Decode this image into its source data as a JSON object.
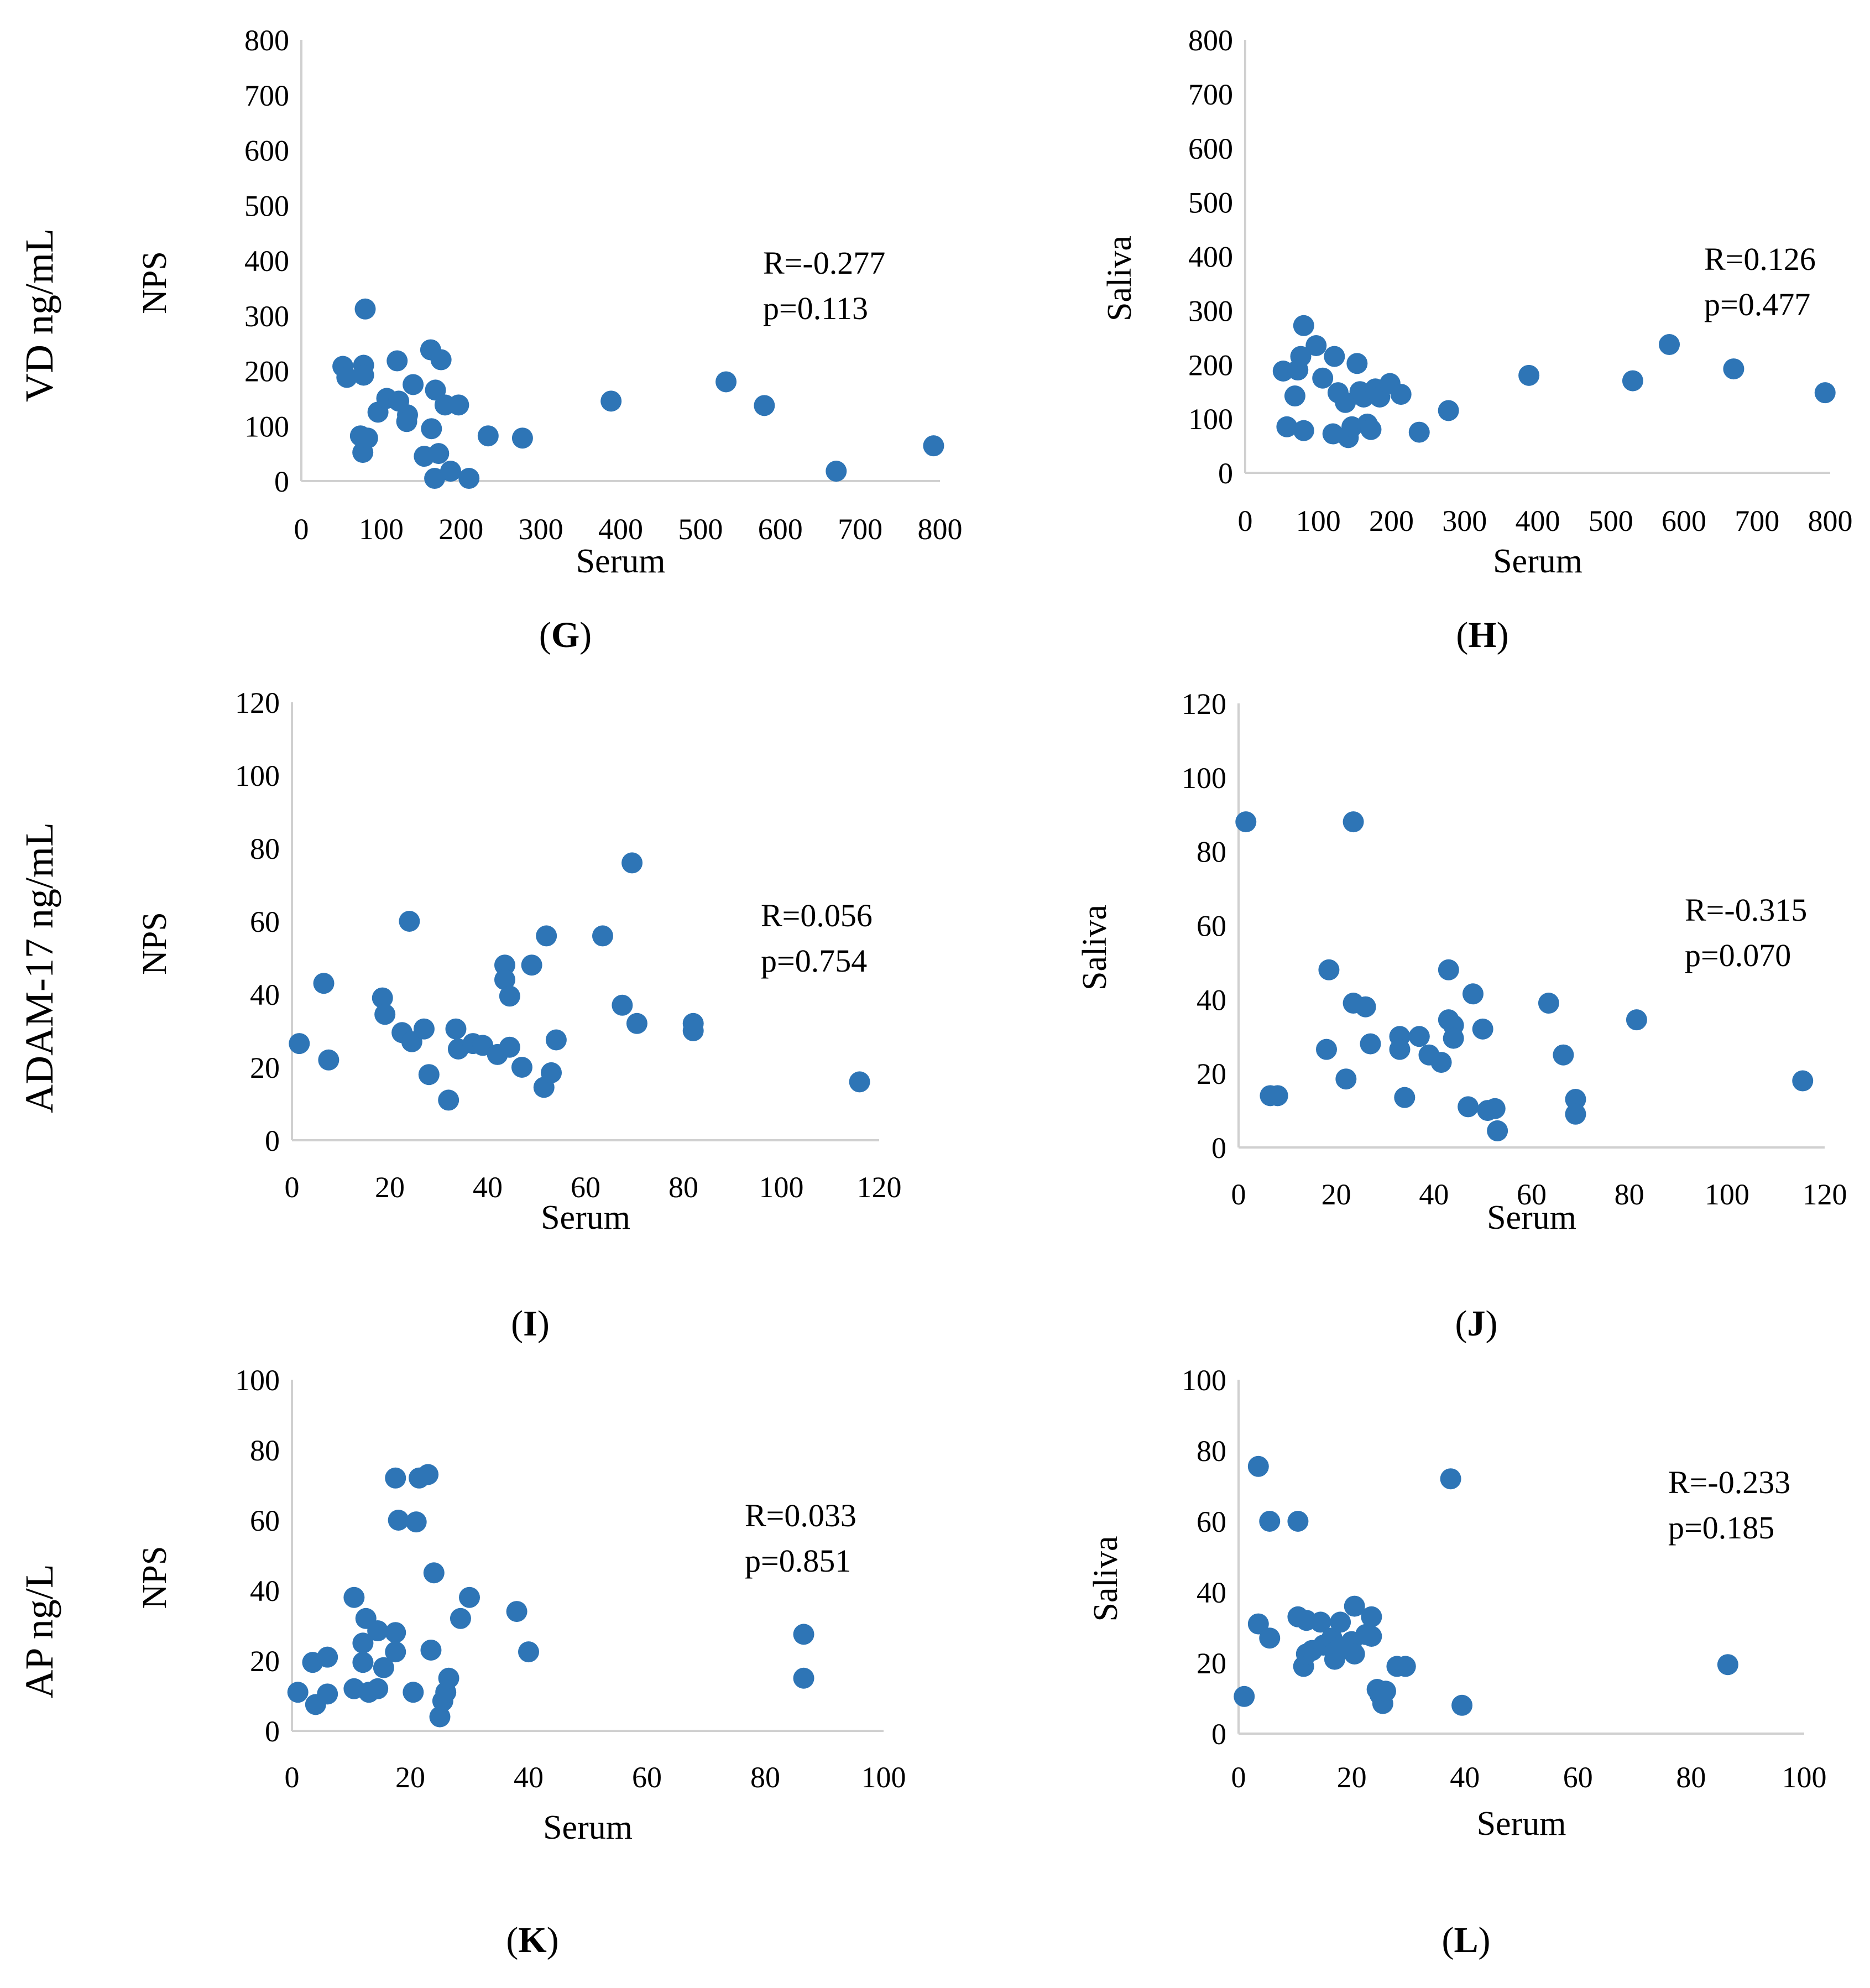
{
  "figure": {
    "row_labels": [
      "VD ng/mL",
      "ADAM-17 ng/mL",
      "AP ng/L"
    ],
    "colors": {
      "point": "#2E75B6",
      "axis": "#D0D0D0",
      "text": "#000000"
    }
  },
  "chart_data": [
    {
      "id": "G",
      "type": "scatter",
      "letter": "G",
      "xlabel": "Serum",
      "ylabel": "NPS",
      "xlim": [
        0,
        800
      ],
      "ylim": [
        0,
        800
      ],
      "xticks": [
        0,
        100,
        200,
        300,
        400,
        500,
        600,
        700,
        800
      ],
      "yticks": [
        0,
        100,
        200,
        300,
        400,
        500,
        600,
        700,
        800
      ],
      "annotation": [
        "R=-0.277",
        "p=0.113"
      ],
      "points": [
        [
          52,
          208
        ],
        [
          57,
          188
        ],
        [
          78,
          210
        ],
        [
          78,
          192
        ],
        [
          74,
          82
        ],
        [
          77,
          52
        ],
        [
          83,
          78
        ],
        [
          80,
          312
        ],
        [
          96,
          125
        ],
        [
          107,
          150
        ],
        [
          120,
          218
        ],
        [
          122,
          145
        ],
        [
          133,
          120
        ],
        [
          132,
          108
        ],
        [
          140,
          175
        ],
        [
          154,
          45
        ],
        [
          163,
          95
        ],
        [
          162,
          238
        ],
        [
          168,
          165
        ],
        [
          172,
          50
        ],
        [
          175,
          220
        ],
        [
          167,
          5
        ],
        [
          180,
          138
        ],
        [
          187,
          18
        ],
        [
          197,
          138
        ],
        [
          210,
          5
        ],
        [
          234,
          82
        ],
        [
          277,
          78
        ],
        [
          388,
          145
        ],
        [
          532,
          180
        ],
        [
          580,
          137
        ],
        [
          670,
          18
        ],
        [
          792,
          64
        ]
      ]
    },
    {
      "id": "H",
      "type": "scatter",
      "letter": "H",
      "xlabel": "Serum",
      "ylabel": "Saliva",
      "xlim": [
        0,
        800
      ],
      "ylim": [
        0,
        800
      ],
      "xticks": [
        0,
        100,
        200,
        300,
        400,
        500,
        600,
        700,
        800
      ],
      "yticks": [
        0,
        100,
        200,
        300,
        400,
        500,
        600,
        700,
        800
      ],
      "annotation": [
        "R=0.126",
        "p=0.477"
      ],
      "points": [
        [
          52,
          188
        ],
        [
          57,
          85
        ],
        [
          68,
          142
        ],
        [
          72,
          190
        ],
        [
          76,
          215
        ],
        [
          80,
          78
        ],
        [
          80,
          272
        ],
        [
          97,
          235
        ],
        [
          106,
          175
        ],
        [
          120,
          72
        ],
        [
          122,
          215
        ],
        [
          127,
          148
        ],
        [
          137,
          130
        ],
        [
          141,
          65
        ],
        [
          146,
          85
        ],
        [
          153,
          202
        ],
        [
          157,
          150
        ],
        [
          162,
          140
        ],
        [
          167,
          90
        ],
        [
          172,
          80
        ],
        [
          178,
          155
        ],
        [
          184,
          140
        ],
        [
          198,
          165
        ],
        [
          213,
          145
        ],
        [
          238,
          75
        ],
        [
          278,
          115
        ],
        [
          388,
          180
        ],
        [
          530,
          170
        ],
        [
          580,
          237
        ],
        [
          668,
          192
        ],
        [
          793,
          148
        ]
      ]
    },
    {
      "id": "I",
      "type": "scatter",
      "letter": "I",
      "xlabel": "Serum",
      "ylabel": "NPS",
      "xlim": [
        0,
        120
      ],
      "ylim": [
        0,
        120
      ],
      "xticks": [
        0,
        20,
        40,
        60,
        80,
        100,
        120
      ],
      "yticks": [
        0,
        20,
        40,
        60,
        80,
        100,
        120
      ],
      "annotation": [
        "R=0.056",
        "p=0.754"
      ],
      "points": [
        [
          1.5,
          26.5
        ],
        [
          6.5,
          43
        ],
        [
          7.5,
          22
        ],
        [
          18.5,
          39
        ],
        [
          19,
          34.5
        ],
        [
          22.5,
          29.5
        ],
        [
          24,
          60
        ],
        [
          24.5,
          27
        ],
        [
          27,
          30.5
        ],
        [
          28,
          18
        ],
        [
          32,
          11
        ],
        [
          33.5,
          30.5
        ],
        [
          34,
          25
        ],
        [
          37,
          26.5
        ],
        [
          39,
          26
        ],
        [
          42,
          23.5
        ],
        [
          43.5,
          48
        ],
        [
          43.5,
          44
        ],
        [
          44.5,
          39.5
        ],
        [
          44.5,
          25.5
        ],
        [
          47,
          20
        ],
        [
          49,
          48
        ],
        [
          51.5,
          14.5
        ],
        [
          52,
          56
        ],
        [
          53,
          18.5
        ],
        [
          54,
          27.5
        ],
        [
          63.5,
          56
        ],
        [
          67.5,
          37
        ],
        [
          69.5,
          76
        ],
        [
          70.5,
          32
        ],
        [
          82,
          32
        ],
        [
          82,
          30
        ],
        [
          116,
          16
        ]
      ]
    },
    {
      "id": "J",
      "type": "scatter",
      "letter": "J",
      "xlabel": "Serum",
      "ylabel": "Saliva",
      "xlim": [
        0,
        120
      ],
      "ylim": [
        0,
        120
      ],
      "xticks": [
        0,
        20,
        40,
        60,
        80,
        100,
        120
      ],
      "yticks": [
        0,
        20,
        40,
        60,
        80,
        100,
        120
      ],
      "annotation": [
        "R=-0.315",
        "p=0.070"
      ],
      "points": [
        [
          1.5,
          88
        ],
        [
          6.5,
          14
        ],
        [
          8,
          14
        ],
        [
          18,
          26.5
        ],
        [
          18.5,
          48
        ],
        [
          22,
          18.5
        ],
        [
          23.5,
          39
        ],
        [
          23.5,
          88
        ],
        [
          26,
          38
        ],
        [
          27,
          28
        ],
        [
          33,
          30
        ],
        [
          33,
          26.5
        ],
        [
          34,
          13.5
        ],
        [
          37,
          30
        ],
        [
          39,
          25
        ],
        [
          41.5,
          23
        ],
        [
          43,
          48
        ],
        [
          43,
          34.5
        ],
        [
          44,
          33
        ],
        [
          44,
          29.5
        ],
        [
          47,
          11
        ],
        [
          48,
          41.5
        ],
        [
          50,
          32
        ],
        [
          51,
          10
        ],
        [
          52.5,
          10.5
        ],
        [
          53,
          4.5
        ],
        [
          63.5,
          39
        ],
        [
          66.5,
          25
        ],
        [
          69,
          13
        ],
        [
          69,
          9
        ],
        [
          81.5,
          34.5
        ],
        [
          115.5,
          18
        ]
      ]
    },
    {
      "id": "K",
      "type": "scatter",
      "letter": "K",
      "xlabel": "Serum",
      "ylabel": "NPS",
      "xlim": [
        0,
        100
      ],
      "ylim": [
        0,
        100
      ],
      "xticks": [
        0,
        20,
        40,
        60,
        80,
        100
      ],
      "yticks": [
        0,
        20,
        40,
        60,
        80,
        100
      ],
      "annotation": [
        "R=0.033",
        "p=0.851"
      ],
      "points": [
        [
          1,
          11
        ],
        [
          3.5,
          19.5
        ],
        [
          4,
          7.5
        ],
        [
          6,
          21
        ],
        [
          6,
          10.5
        ],
        [
          10.5,
          38
        ],
        [
          10.5,
          12
        ],
        [
          12,
          25
        ],
        [
          12,
          19.5
        ],
        [
          12.5,
          32
        ],
        [
          13,
          11
        ],
        [
          14.5,
          28.5
        ],
        [
          14.5,
          12
        ],
        [
          15.5,
          18
        ],
        [
          17.5,
          72
        ],
        [
          17.5,
          28
        ],
        [
          17.5,
          22.5
        ],
        [
          18,
          60
        ],
        [
          20.5,
          11
        ],
        [
          21,
          59.5
        ],
        [
          21.5,
          72
        ],
        [
          23,
          73
        ],
        [
          23.5,
          23
        ],
        [
          24,
          45
        ],
        [
          25,
          4
        ],
        [
          25.5,
          8.5
        ],
        [
          26,
          11
        ],
        [
          26.5,
          15
        ],
        [
          28.5,
          32
        ],
        [
          30,
          38
        ],
        [
          38,
          34
        ],
        [
          40,
          22.5
        ],
        [
          86.5,
          27.5
        ],
        [
          86.5,
          15
        ]
      ]
    },
    {
      "id": "L",
      "type": "scatter",
      "letter": "L",
      "xlabel": "Serum",
      "ylabel": "Saliva",
      "xlim": [
        0,
        100
      ],
      "ylim": [
        0,
        100
      ],
      "xticks": [
        0,
        20,
        40,
        60,
        80,
        100
      ],
      "yticks": [
        0,
        20,
        40,
        60,
        80,
        100
      ],
      "annotation": [
        "R=-0.233",
        "p=0.185"
      ],
      "points": [
        [
          1,
          10.5
        ],
        [
          3.5,
          75.5
        ],
        [
          3.5,
          31
        ],
        [
          5.5,
          27
        ],
        [
          5.5,
          60
        ],
        [
          10.5,
          33
        ],
        [
          10.5,
          60
        ],
        [
          11.5,
          19
        ],
        [
          12,
          22.5
        ],
        [
          12,
          32
        ],
        [
          13,
          23.5
        ],
        [
          14.5,
          31.5
        ],
        [
          15,
          25
        ],
        [
          16.5,
          27
        ],
        [
          17,
          23
        ],
        [
          17,
          21
        ],
        [
          18,
          31.5
        ],
        [
          18,
          24.5
        ],
        [
          20,
          26
        ],
        [
          20.5,
          36
        ],
        [
          20.5,
          22.5
        ],
        [
          22.5,
          28
        ],
        [
          23.5,
          33
        ],
        [
          23.5,
          27.5
        ],
        [
          24.5,
          12.5
        ],
        [
          25,
          11
        ],
        [
          25.5,
          8.5
        ],
        [
          26,
          12
        ],
        [
          28,
          19
        ],
        [
          29.5,
          19
        ],
        [
          37.5,
          72
        ],
        [
          39.5,
          8
        ],
        [
          86.5,
          19.5
        ]
      ]
    }
  ]
}
